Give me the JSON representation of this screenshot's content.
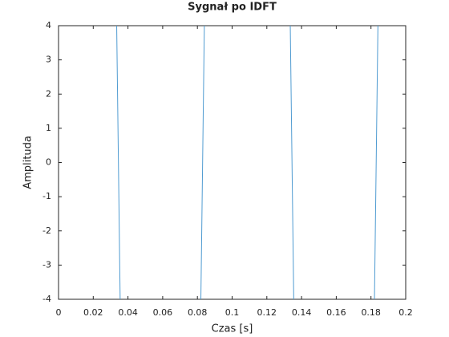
{
  "chart_data": {
    "type": "line",
    "title": "Sygnał po IDFT",
    "xlabel": "Czas [s]",
    "ylabel": "Amplituda",
    "x": [
      0,
      0.03325,
      0.03575,
      0.08175,
      0.08425,
      0.13325,
      0.13575,
      0.18175,
      0.18425,
      0.2
    ],
    "series": [
      {
        "name": "IDFT",
        "color": "#4f9bd1",
        "values": [
          5,
          5,
          -5,
          -5,
          5,
          5,
          -5,
          -5,
          5,
          5
        ]
      }
    ],
    "xlim": [
      0,
      0.2
    ],
    "xticks": [
      0,
      0.02,
      0.04,
      0.06,
      0.08,
      0.1,
      0.12,
      0.14,
      0.16,
      0.18,
      0.2
    ],
    "ylim": [
      -4,
      4
    ],
    "yticks": [
      -4,
      -3,
      -2,
      -1,
      0,
      1,
      2,
      3,
      4
    ],
    "grid": false
  }
}
